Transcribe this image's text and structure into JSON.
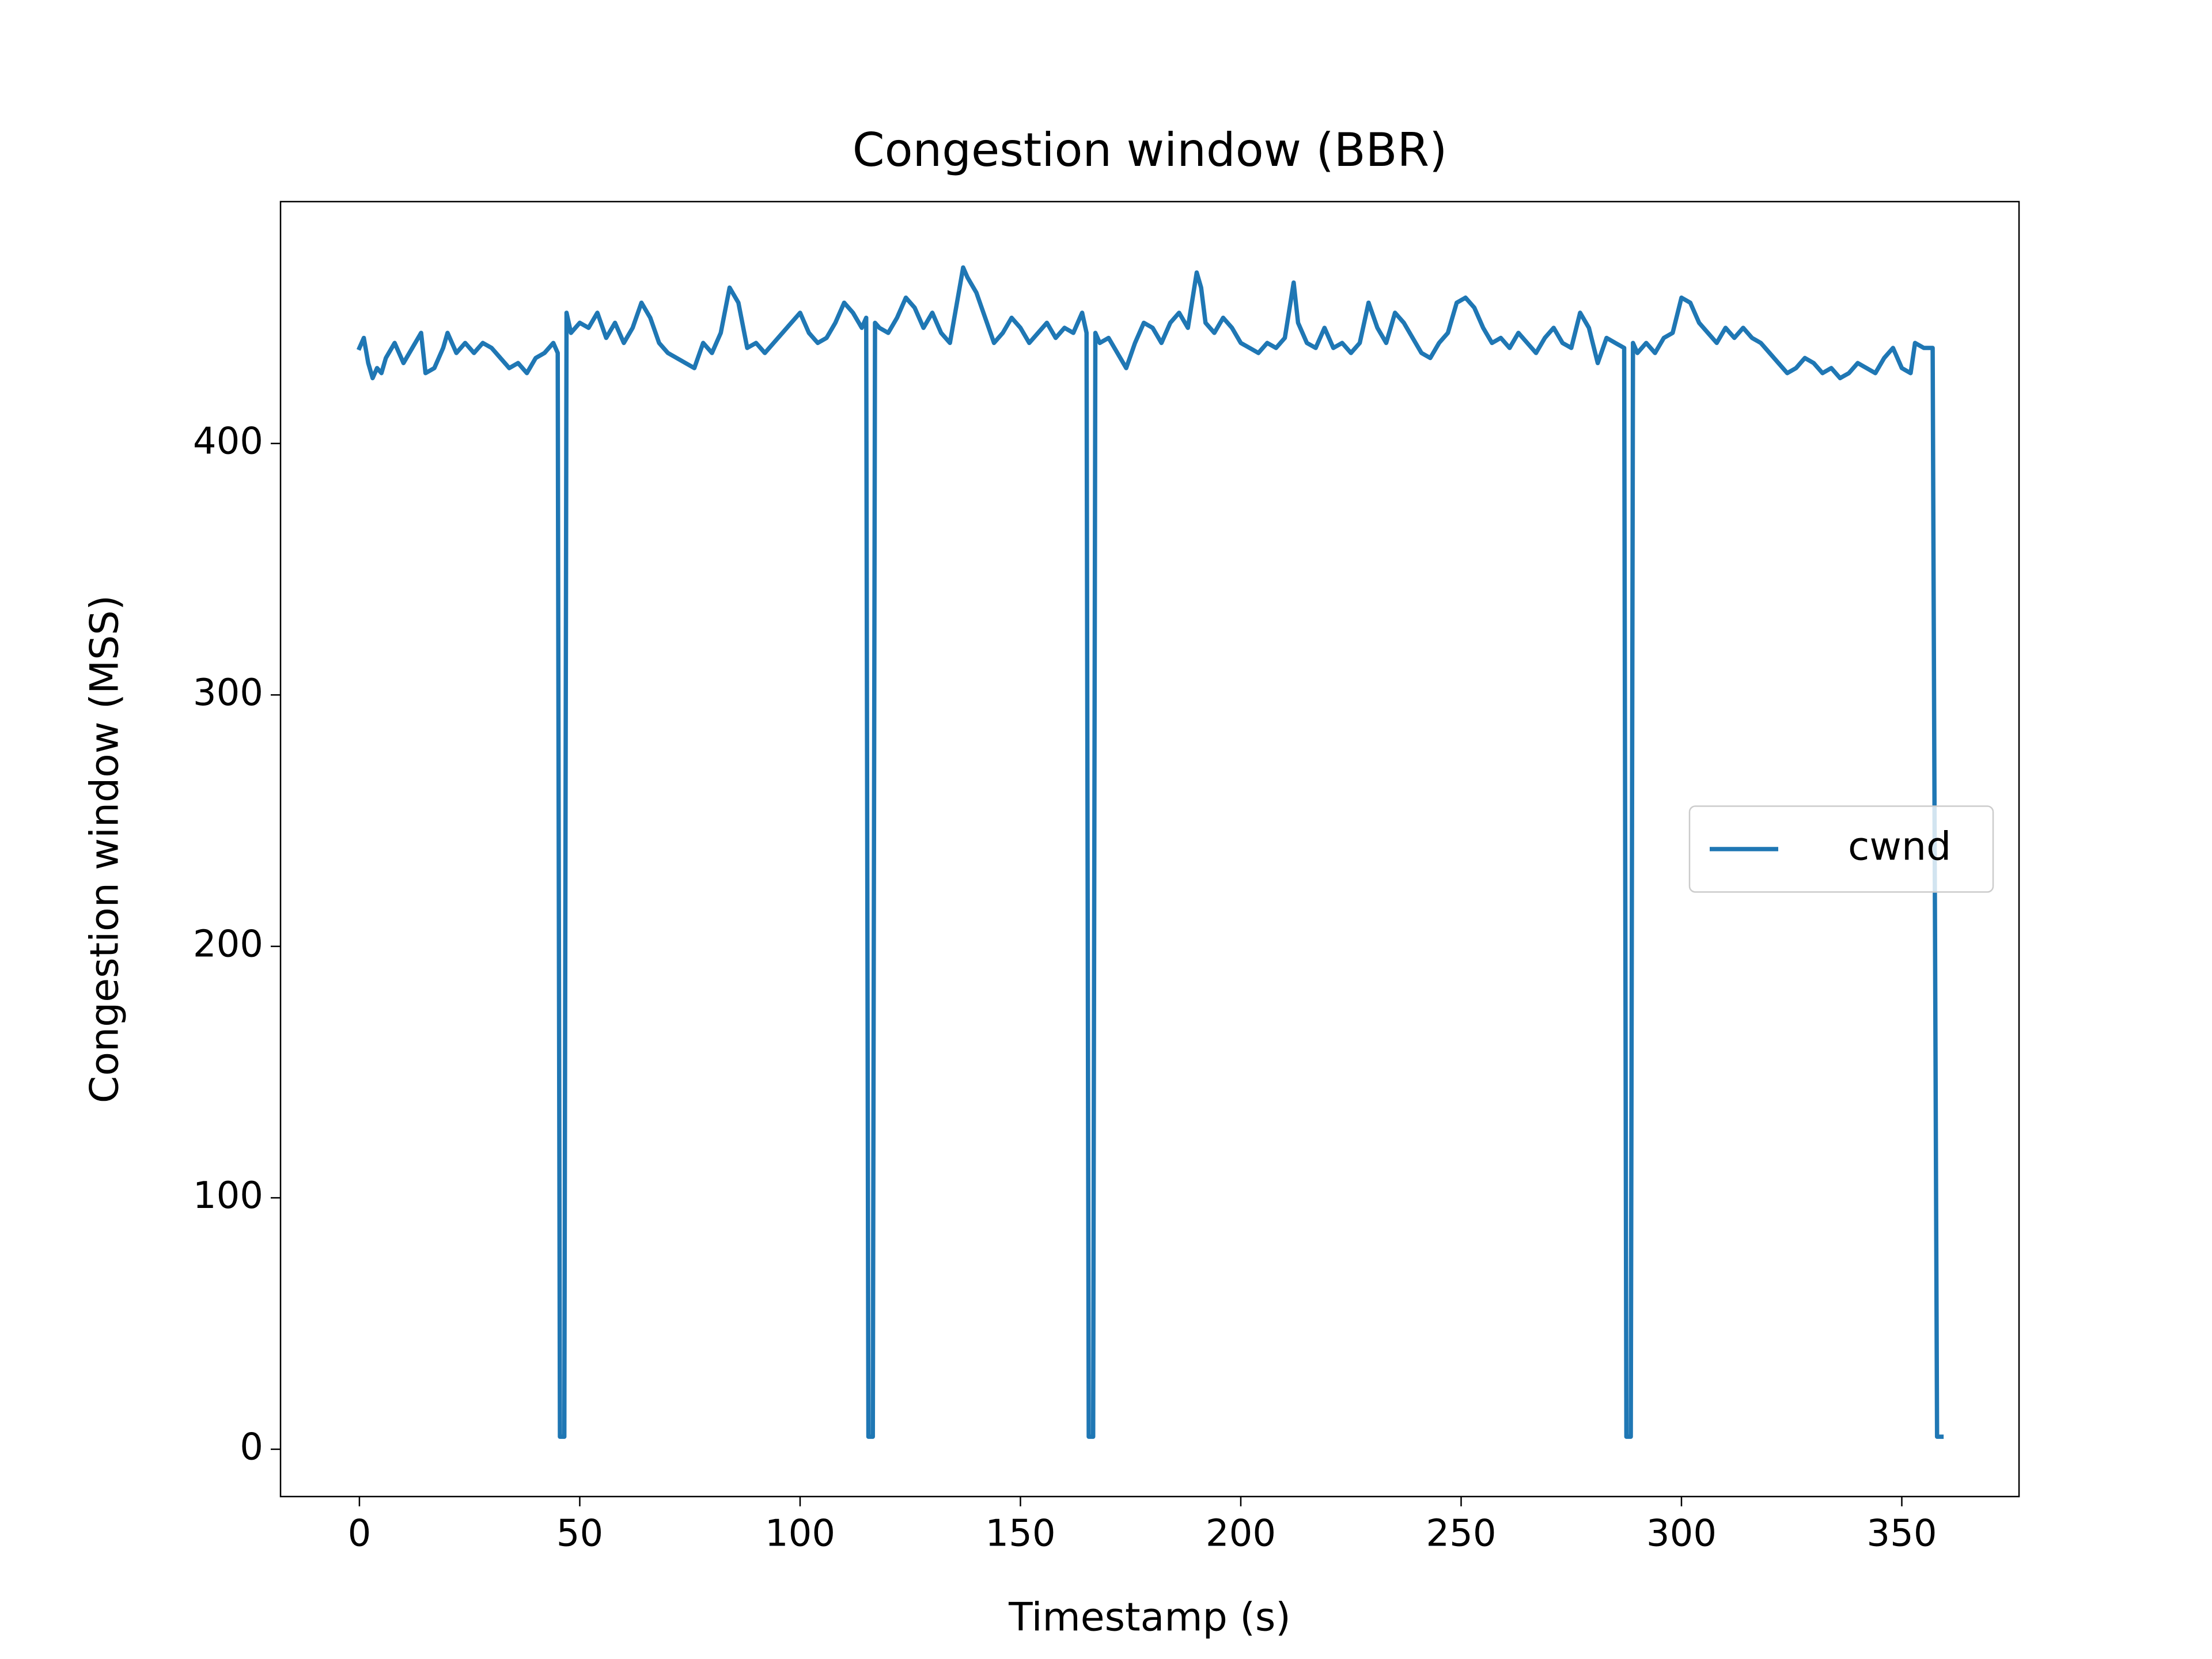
{
  "chart_data": {
    "type": "line",
    "title": "Congestion window (BBR)",
    "x_label": "Timestamp (s)",
    "y_label": "Congestion window (MSS)",
    "x": [
      0,
      1,
      2,
      3,
      4,
      5,
      6,
      8,
      10,
      12,
      14,
      15,
      17,
      19,
      20,
      22,
      24,
      26,
      28,
      30,
      32,
      34,
      36,
      38,
      40,
      42,
      44,
      45,
      45.5,
      46.5,
      47,
      48,
      50,
      52,
      54,
      56,
      58,
      60,
      62,
      64,
      66,
      68,
      70,
      72,
      74,
      76,
      78,
      80,
      82,
      84,
      86,
      88,
      90,
      92,
      94,
      96,
      98,
      100,
      102,
      104,
      106,
      108,
      110,
      112,
      114,
      115,
      115.5,
      116.5,
      117,
      118,
      120,
      122,
      124,
      126,
      128,
      130,
      132,
      134,
      136,
      137,
      138,
      140,
      142,
      144,
      146,
      148,
      150,
      152,
      154,
      156,
      158,
      160,
      162,
      164,
      165,
      165.5,
      166.5,
      167,
      168,
      170,
      172,
      174,
      176,
      178,
      180,
      182,
      184,
      186,
      188,
      190,
      191,
      192,
      194,
      196,
      198,
      200,
      202,
      204,
      206,
      208,
      210,
      212,
      213,
      215,
      217,
      219,
      221,
      223,
      225,
      227,
      229,
      231,
      233,
      235,
      237,
      239,
      241,
      243,
      245,
      247,
      249,
      251,
      253,
      255,
      257,
      259,
      261,
      263,
      265,
      267,
      269,
      271,
      273,
      275,
      277,
      279,
      281,
      283,
      285,
      287,
      287.5,
      288.5,
      289,
      290,
      292,
      294,
      296,
      298,
      300,
      302,
      304,
      306,
      308,
      310,
      312,
      314,
      316,
      318,
      320,
      322,
      324,
      326,
      328,
      330,
      332,
      334,
      336,
      338,
      340,
      342,
      344,
      346,
      348,
      350,
      352,
      353,
      355,
      357,
      358,
      359
    ],
    "series": [
      {
        "name": "cwnd",
        "color": "#1f77b4",
        "values": [
          438,
          442,
          432,
          426,
          430,
          428,
          434,
          440,
          432,
          438,
          444,
          428,
          430,
          438,
          444,
          436,
          440,
          436,
          440,
          438,
          434,
          430,
          432,
          428,
          434,
          436,
          440,
          436,
          5,
          5,
          452,
          444,
          448,
          446,
          452,
          442,
          448,
          440,
          446,
          456,
          450,
          440,
          436,
          434,
          432,
          430,
          440,
          436,
          444,
          462,
          456,
          438,
          440,
          436,
          440,
          444,
          448,
          452,
          444,
          440,
          442,
          448,
          456,
          452,
          446,
          450,
          5,
          5,
          448,
          446,
          444,
          450,
          458,
          454,
          446,
          452,
          444,
          440,
          460,
          470,
          466,
          460,
          450,
          440,
          444,
          450,
          446,
          440,
          444,
          448,
          442,
          446,
          444,
          452,
          444,
          5,
          5,
          444,
          440,
          442,
          436,
          430,
          440,
          448,
          446,
          440,
          448,
          452,
          446,
          468,
          462,
          448,
          444,
          450,
          446,
          440,
          438,
          436,
          440,
          438,
          442,
          464,
          448,
          440,
          438,
          446,
          438,
          440,
          436,
          440,
          456,
          446,
          440,
          452,
          448,
          442,
          436,
          434,
          440,
          444,
          456,
          458,
          454,
          446,
          440,
          442,
          438,
          444,
          440,
          436,
          442,
          446,
          440,
          438,
          452,
          446,
          432,
          442,
          440,
          438,
          5,
          5,
          440,
          436,
          440,
          436,
          442,
          444,
          458,
          456,
          448,
          444,
          440,
          446,
          442,
          446,
          442,
          440,
          436,
          432,
          428,
          430,
          434,
          432,
          428,
          430,
          426,
          428,
          432,
          430,
          428,
          434,
          438,
          430,
          428,
          440,
          438,
          438,
          5,
          5
        ]
      }
    ],
    "xlim": [
      -17.9,
      376.6
    ],
    "ylim": [
      -18.8,
      496.2
    ],
    "xticks": [
      0,
      50,
      100,
      150,
      200,
      250,
      300,
      350
    ],
    "yticks": [
      0,
      100,
      200,
      300,
      400
    ],
    "legend": "center right",
    "grid": false
  }
}
